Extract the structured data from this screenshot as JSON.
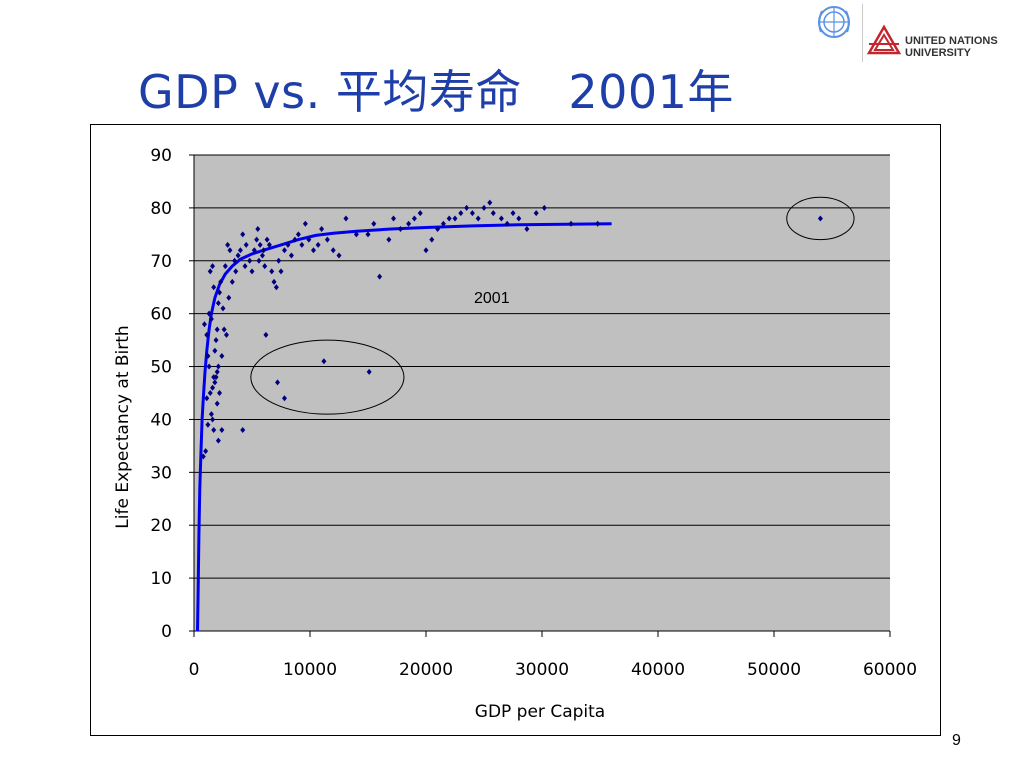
{
  "slide": {
    "title": "GDP vs. 平均寿命　2001年",
    "page_number": "9",
    "logo": {
      "org_line1": "UNITED NATIONS",
      "org_line2": "UNIVERSITY",
      "un_emblem_icon": "un-emblem-icon",
      "unu_mark_icon": "unu-triangle-icon",
      "unu_color": "#c4262e",
      "un_color": "#5b92e5"
    }
  },
  "chart_data": {
    "type": "scatter",
    "title": "",
    "xlabel": "GDP per Capita",
    "ylabel": "Life Expectancy at Birth",
    "xlim": [
      0,
      60000
    ],
    "ylim": [
      0,
      90
    ],
    "xticks": [
      0,
      10000,
      20000,
      30000,
      40000,
      50000,
      60000
    ],
    "yticks": [
      0,
      10,
      20,
      30,
      40,
      50,
      60,
      70,
      80,
      90
    ],
    "grid": "horizontal",
    "plot_background": "#c0c0c0",
    "marker_color": "#000080",
    "trend_color": "#0000ee",
    "annotation": "2001",
    "series": [
      {
        "points": [
          [
            900,
            58
          ],
          [
            1100,
            56
          ],
          [
            1200,
            52
          ],
          [
            1300,
            50
          ],
          [
            1400,
            45
          ],
          [
            1100,
            44
          ],
          [
            1500,
            41
          ],
          [
            1200,
            39
          ],
          [
            1000,
            34
          ],
          [
            800,
            33
          ],
          [
            1600,
            46
          ],
          [
            1700,
            48
          ],
          [
            1800,
            53
          ],
          [
            1900,
            55
          ],
          [
            2000,
            57
          ],
          [
            1500,
            59
          ],
          [
            1300,
            60
          ],
          [
            2100,
            62
          ],
          [
            2200,
            64
          ],
          [
            1700,
            65
          ],
          [
            1400,
            68
          ],
          [
            1600,
            69
          ],
          [
            2300,
            66
          ],
          [
            2500,
            61
          ],
          [
            2600,
            57
          ],
          [
            2800,
            56
          ],
          [
            2400,
            52
          ],
          [
            2100,
            50
          ],
          [
            2000,
            49
          ],
          [
            1900,
            48
          ],
          [
            1800,
            47
          ],
          [
            2200,
            45
          ],
          [
            2000,
            43
          ],
          [
            1600,
            40
          ],
          [
            1700,
            38
          ],
          [
            2100,
            36
          ],
          [
            2400,
            38
          ],
          [
            4200,
            38
          ],
          [
            7200,
            47
          ],
          [
            7800,
            44
          ],
          [
            11200,
            51
          ],
          [
            15100,
            49
          ],
          [
            6200,
            56
          ],
          [
            3000,
            63
          ],
          [
            3300,
            66
          ],
          [
            3500,
            70
          ],
          [
            3800,
            71
          ],
          [
            4000,
            72
          ],
          [
            4200,
            75
          ],
          [
            4500,
            73
          ],
          [
            4800,
            70
          ],
          [
            5000,
            68
          ],
          [
            5200,
            72
          ],
          [
            5400,
            74
          ],
          [
            5500,
            76
          ],
          [
            5700,
            73
          ],
          [
            5900,
            71
          ],
          [
            6100,
            69
          ],
          [
            6300,
            74
          ],
          [
            6500,
            73
          ],
          [
            6700,
            68
          ],
          [
            6900,
            66
          ],
          [
            7100,
            65
          ],
          [
            7300,
            70
          ],
          [
            7500,
            68
          ],
          [
            7800,
            72
          ],
          [
            8100,
            73
          ],
          [
            8400,
            71
          ],
          [
            8700,
            74
          ],
          [
            9000,
            75
          ],
          [
            9300,
            73
          ],
          [
            9600,
            77
          ],
          [
            9900,
            74
          ],
          [
            10300,
            72
          ],
          [
            10700,
            73
          ],
          [
            11000,
            76
          ],
          [
            11500,
            74
          ],
          [
            12000,
            72
          ],
          [
            12500,
            71
          ],
          [
            13100,
            78
          ],
          [
            14000,
            75
          ],
          [
            15000,
            75
          ],
          [
            15500,
            77
          ],
          [
            16000,
            67
          ],
          [
            16800,
            74
          ],
          [
            17200,
            78
          ],
          [
            17800,
            76
          ],
          [
            18500,
            77
          ],
          [
            19000,
            78
          ],
          [
            19500,
            79
          ],
          [
            20000,
            72
          ],
          [
            20500,
            74
          ],
          [
            21000,
            76
          ],
          [
            21500,
            77
          ],
          [
            22000,
            78
          ],
          [
            22500,
            78
          ],
          [
            23000,
            79
          ],
          [
            23500,
            80
          ],
          [
            24000,
            79
          ],
          [
            24500,
            78
          ],
          [
            25000,
            80
          ],
          [
            25500,
            81
          ],
          [
            25800,
            79
          ],
          [
            26500,
            78
          ],
          [
            27000,
            77
          ],
          [
            27500,
            79
          ],
          [
            28000,
            78
          ],
          [
            28700,
            76
          ],
          [
            29500,
            79
          ],
          [
            30200,
            80
          ],
          [
            32500,
            77
          ],
          [
            34800,
            77
          ],
          [
            54000,
            78
          ],
          [
            3100,
            72
          ],
          [
            2700,
            69
          ],
          [
            2900,
            73
          ],
          [
            3600,
            68
          ],
          [
            4400,
            69
          ],
          [
            5600,
            70
          ],
          [
            6000,
            72
          ]
        ]
      }
    ],
    "trendline": {
      "type": "logarithmic-saturating",
      "points": [
        [
          300,
          0
        ],
        [
          350,
          7
        ],
        [
          420,
          18
        ],
        [
          500,
          27
        ],
        [
          600,
          34
        ],
        [
          700,
          40
        ],
        [
          800,
          44
        ],
        [
          950,
          49
        ],
        [
          1100,
          53
        ],
        [
          1300,
          57
        ],
        [
          1500,
          60
        ],
        [
          1800,
          63
        ],
        [
          2200,
          65.5
        ],
        [
          2700,
          67.5
        ],
        [
          3300,
          69
        ],
        [
          4000,
          70.3
        ],
        [
          5000,
          71.3
        ],
        [
          6000,
          72
        ],
        [
          7500,
          73
        ],
        [
          9000,
          74
        ],
        [
          10500,
          74.8
        ],
        [
          12000,
          75.2
        ],
        [
          14000,
          75.6
        ],
        [
          17000,
          76
        ],
        [
          20000,
          76.3
        ],
        [
          24000,
          76.6
        ],
        [
          28000,
          76.8
        ],
        [
          32000,
          76.9
        ],
        [
          36000,
          77
        ]
      ]
    },
    "highlight_circles": [
      {
        "cx": 11500,
        "cy": 48,
        "rx": 6600,
        "ry": 7
      },
      {
        "cx": 54000,
        "cy": 78,
        "rx": 2900,
        "ry": 4
      }
    ]
  }
}
